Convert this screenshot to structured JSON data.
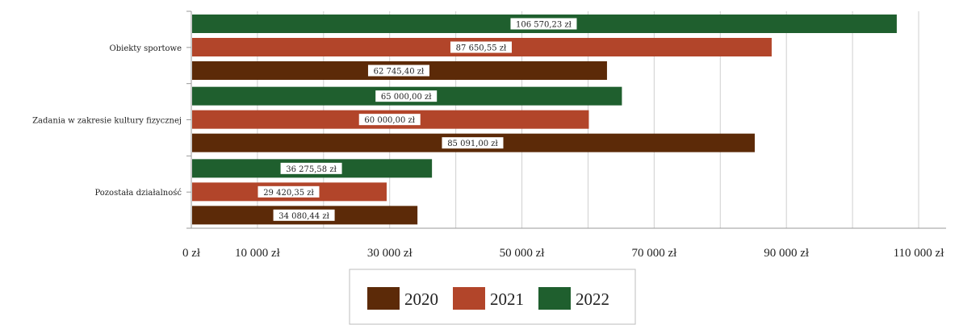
{
  "chart_data": {
    "type": "bar",
    "orientation": "horizontal",
    "categories": [
      "Obiekty sportowe",
      "Zadania w zakresie kultury fizycznej",
      "Pozostała działalność"
    ],
    "series": [
      {
        "name": "2022",
        "color": "#1f5f2e",
        "values": [
          106570.23,
          65000.0,
          36275.58
        ],
        "labels": [
          "106 570,23 zł",
          "65 000,00 zł",
          "36 275,58 zł"
        ]
      },
      {
        "name": "2021",
        "color": "#b2452a",
        "values": [
          87650.55,
          60000.0,
          29420.35
        ],
        "labels": [
          "87 650,55 zł",
          "60 000,00 zł",
          "29 420,35 zł"
        ]
      },
      {
        "name": "2020",
        "color": "#5c2a08",
        "values": [
          62745.4,
          85091.0,
          34080.44
        ],
        "labels": [
          "62 745,40 zł",
          "85 091,00 zł",
          "34 080,44 zł"
        ]
      }
    ],
    "xlim": [
      0,
      115000
    ],
    "x_ticks": [
      0,
      10000,
      30000,
      50000,
      70000,
      90000,
      110000
    ],
    "x_tick_labels": [
      "0 zł",
      "10 000 zł",
      "30 000 zł",
      "50 000 zł",
      "70 000 zł",
      "90 000 zł",
      "110 000 zł"
    ],
    "gridlines": [
      10000,
      20000,
      30000,
      40000,
      50000,
      60000,
      70000,
      80000,
      90000,
      100000,
      110000
    ],
    "grid": true,
    "legend": {
      "position": "bottom",
      "entries": [
        {
          "name": "2020",
          "color": "#5c2a08"
        },
        {
          "name": "2021",
          "color": "#b2452a"
        },
        {
          "name": "2022",
          "color": "#1f5f2e"
        }
      ]
    },
    "title": "",
    "xlabel": "",
    "ylabel": ""
  }
}
